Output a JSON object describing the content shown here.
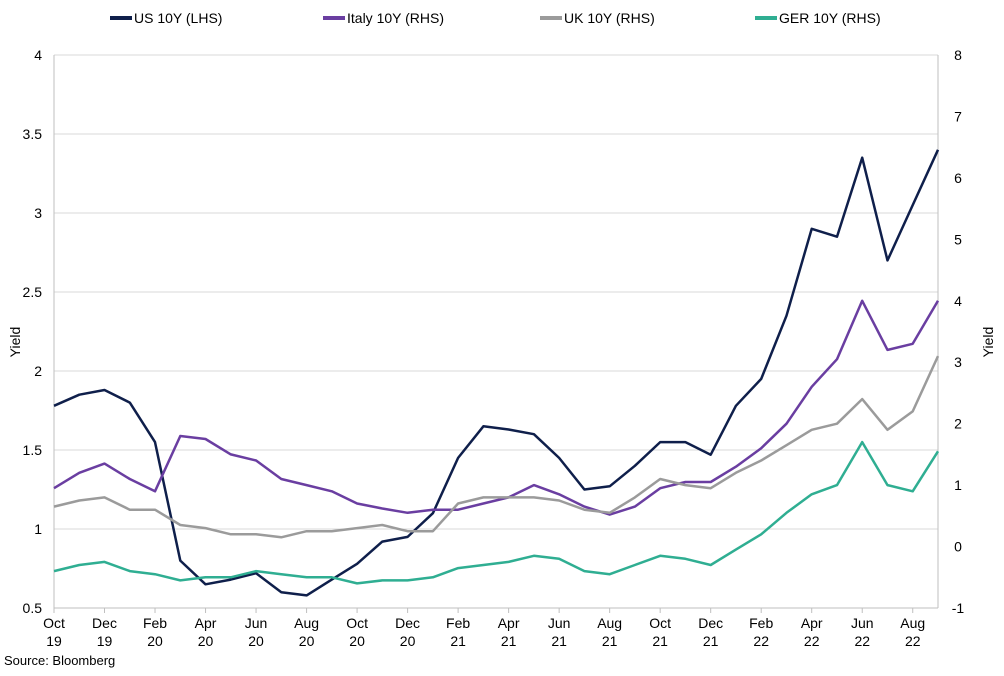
{
  "chart_data": {
    "type": "line",
    "source": "Source: Bloomberg",
    "ylabel_left": "Yield",
    "ylabel_right": "Yield",
    "ylim_left": [
      0.5,
      4
    ],
    "ylim_right": [
      -1,
      8
    ],
    "yticks_left": [
      "0.5",
      "1",
      "1.5",
      "2",
      "2.5",
      "3",
      "3.5",
      "4"
    ],
    "yticks_right": [
      "-1",
      "0",
      "1",
      "2",
      "3",
      "4",
      "5",
      "6",
      "7",
      "8"
    ],
    "x_ticks": [
      {
        "m": "Oct",
        "y": "19"
      },
      {
        "m": "Dec",
        "y": "19"
      },
      {
        "m": "Feb",
        "y": "20"
      },
      {
        "m": "Apr",
        "y": "20"
      },
      {
        "m": "Jun",
        "y": "20"
      },
      {
        "m": "Aug",
        "y": "20"
      },
      {
        "m": "Oct",
        "y": "20"
      },
      {
        "m": "Dec",
        "y": "20"
      },
      {
        "m": "Feb",
        "y": "21"
      },
      {
        "m": "Apr",
        "y": "21"
      },
      {
        "m": "Jun",
        "y": "21"
      },
      {
        "m": "Aug",
        "y": "21"
      },
      {
        "m": "Oct",
        "y": "21"
      },
      {
        "m": "Dec",
        "y": "21"
      },
      {
        "m": "Feb",
        "y": "22"
      },
      {
        "m": "Apr",
        "y": "22"
      },
      {
        "m": "Jun",
        "y": "22"
      },
      {
        "m": "Aug",
        "y": "22"
      }
    ],
    "x_dates": [
      "2019-10",
      "2019-11",
      "2019-12",
      "2020-01",
      "2020-02",
      "2020-03",
      "2020-04",
      "2020-05",
      "2020-06",
      "2020-07",
      "2020-08",
      "2020-09",
      "2020-10",
      "2020-11",
      "2020-12",
      "2021-01",
      "2021-02",
      "2021-03",
      "2021-04",
      "2021-05",
      "2021-06",
      "2021-07",
      "2021-08",
      "2021-09",
      "2021-10",
      "2021-11",
      "2021-12",
      "2022-01",
      "2022-02",
      "2022-03",
      "2022-04",
      "2022-05",
      "2022-06",
      "2022-07",
      "2022-08",
      "2022-09"
    ],
    "series": [
      {
        "name": "US 10Y (LHS)",
        "axis": "left",
        "color": "#0f1f4b",
        "values": [
          1.78,
          1.85,
          1.88,
          1.8,
          1.55,
          0.8,
          0.65,
          0.68,
          0.72,
          0.6,
          0.58,
          0.68,
          0.78,
          0.92,
          0.95,
          1.1,
          1.45,
          1.65,
          1.63,
          1.6,
          1.45,
          1.25,
          1.27,
          1.4,
          1.55,
          1.55,
          1.47,
          1.78,
          1.95,
          2.35,
          2.9,
          2.85,
          3.35,
          2.7,
          3.05,
          3.4
        ]
      },
      {
        "name": "Italy 10Y (RHS)",
        "axis": "right",
        "color": "#6a3ea1",
        "values": [
          0.95,
          1.2,
          1.35,
          1.1,
          0.9,
          1.8,
          1.75,
          1.5,
          1.4,
          1.1,
          1.0,
          0.9,
          0.7,
          0.62,
          0.55,
          0.6,
          0.6,
          0.7,
          0.8,
          1.0,
          0.85,
          0.65,
          0.52,
          0.65,
          0.95,
          1.05,
          1.05,
          1.3,
          1.6,
          2.0,
          2.6,
          3.05,
          4.0,
          3.2,
          3.3,
          4.0
        ]
      },
      {
        "name": "UK 10Y (RHS)",
        "axis": "right",
        "color": "#9b9b9b",
        "values": [
          0.65,
          0.75,
          0.8,
          0.6,
          0.6,
          0.35,
          0.3,
          0.2,
          0.2,
          0.15,
          0.25,
          0.25,
          0.3,
          0.35,
          0.25,
          0.25,
          0.7,
          0.8,
          0.8,
          0.8,
          0.75,
          0.6,
          0.55,
          0.8,
          1.1,
          1.0,
          0.95,
          1.2,
          1.4,
          1.65,
          1.9,
          2.0,
          2.4,
          1.9,
          2.2,
          3.1
        ]
      },
      {
        "name": "GER 10Y (RHS)",
        "axis": "right",
        "color": "#2fae92",
        "values": [
          -0.4,
          -0.3,
          -0.25,
          -0.4,
          -0.45,
          -0.55,
          -0.5,
          -0.5,
          -0.4,
          -0.45,
          -0.5,
          -0.5,
          -0.6,
          -0.55,
          -0.55,
          -0.5,
          -0.35,
          -0.3,
          -0.25,
          -0.15,
          -0.2,
          -0.4,
          -0.45,
          -0.3,
          -0.15,
          -0.2,
          -0.3,
          -0.05,
          0.2,
          0.55,
          0.85,
          1.0,
          1.7,
          1.0,
          0.9,
          1.55
        ]
      }
    ]
  }
}
